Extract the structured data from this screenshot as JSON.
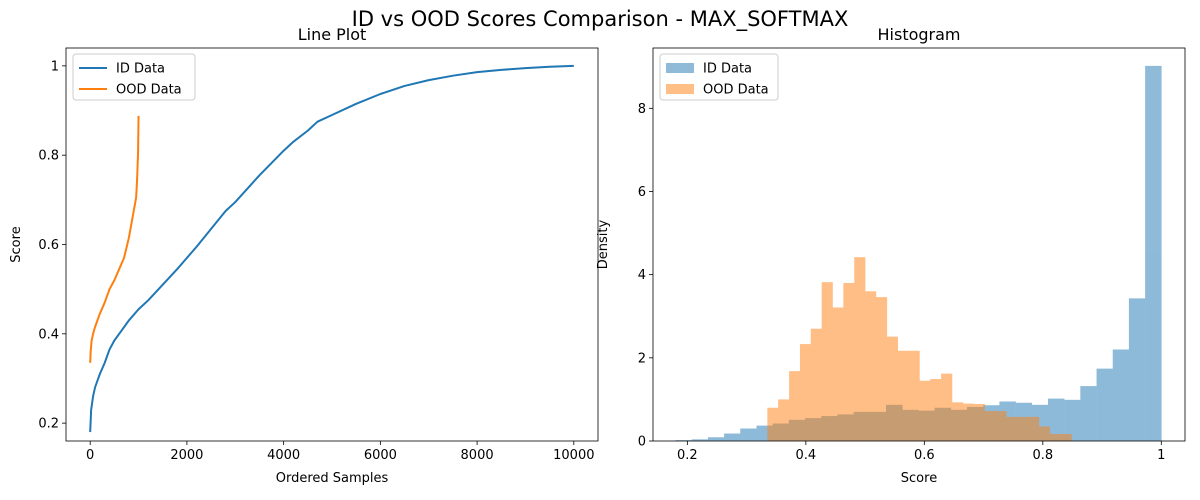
{
  "figure": {
    "title": "ID vs OOD Scores Comparison - MAX_SOFTMAX"
  },
  "chart_data": [
    {
      "type": "line",
      "title": "Line Plot",
      "xlabel": "Ordered Samples",
      "ylabel": "Score",
      "xlim": [
        -500,
        10500
      ],
      "ylim": [
        0.16,
        1.04
      ],
      "xticks": [
        0,
        2000,
        4000,
        6000,
        8000,
        10000
      ],
      "yticks": [
        0.2,
        0.4,
        0.6,
        0.8,
        1.0
      ],
      "legend": "top-left",
      "series": [
        {
          "name": "ID Data",
          "color": "#1f77b4",
          "x": [
            0,
            20,
            60,
            100,
            150,
            200,
            300,
            400,
            500,
            600,
            800,
            1000,
            1200,
            1500,
            1800,
            2000,
            2200,
            2500,
            2800,
            3000,
            3500,
            4000,
            4200,
            4500,
            4700,
            5000,
            5500,
            6000,
            6500,
            7000,
            7500,
            8000,
            8500,
            9000,
            9500,
            10000
          ],
          "y": [
            0.18,
            0.23,
            0.26,
            0.28,
            0.295,
            0.31,
            0.335,
            0.365,
            0.385,
            0.4,
            0.43,
            0.455,
            0.475,
            0.51,
            0.545,
            0.57,
            0.595,
            0.635,
            0.675,
            0.695,
            0.755,
            0.81,
            0.83,
            0.855,
            0.875,
            0.89,
            0.915,
            0.937,
            0.955,
            0.968,
            0.978,
            0.986,
            0.991,
            0.995,
            0.998,
            1.0
          ]
        },
        {
          "name": "OOD Data",
          "color": "#ff7f0e",
          "x": [
            0,
            10,
            30,
            60,
            100,
            200,
            300,
            400,
            500,
            600,
            700,
            800,
            850,
            900,
            950,
            970,
            990,
            1000
          ],
          "y": [
            0.335,
            0.36,
            0.385,
            0.4,
            0.415,
            0.445,
            0.47,
            0.5,
            0.52,
            0.545,
            0.57,
            0.615,
            0.645,
            0.675,
            0.705,
            0.745,
            0.805,
            0.888
          ]
        }
      ]
    },
    {
      "type": "histogram",
      "title": "Histogram",
      "xlabel": "Score",
      "ylabel": "Density",
      "xlim": [
        0.142,
        1.04
      ],
      "ylim": [
        0,
        9.45
      ],
      "xticks": [
        0.2,
        0.4,
        0.6,
        0.8,
        1.0
      ],
      "yticks": [
        0,
        2,
        4,
        6,
        8
      ],
      "legend": "top-left",
      "series": [
        {
          "name": "ID Data",
          "color": "#1f77b4",
          "opacity": 0.5,
          "bin_edges": [
            0.18,
            0.2073,
            0.2347,
            0.262,
            0.2893,
            0.3167,
            0.344,
            0.3713,
            0.3987,
            0.426,
            0.4533,
            0.4807,
            0.508,
            0.5353,
            0.5627,
            0.59,
            0.6173,
            0.6447,
            0.672,
            0.6993,
            0.7267,
            0.754,
            0.7813,
            0.8087,
            0.836,
            0.8633,
            0.8907,
            0.918,
            0.9453,
            0.9727,
            1.0
          ],
          "values": [
            0.02,
            0.04,
            0.09,
            0.18,
            0.3,
            0.37,
            0.42,
            0.51,
            0.55,
            0.6,
            0.64,
            0.7,
            0.7,
            0.87,
            0.75,
            0.73,
            0.8,
            0.75,
            0.82,
            0.86,
            0.95,
            0.92,
            0.87,
            1.02,
            0.99,
            1.32,
            1.74,
            2.2,
            3.43,
            9.02
          ]
        },
        {
          "name": "OOD Data",
          "color": "#ff7f0e",
          "opacity": 0.5,
          "bin_edges": [
            0.335,
            0.3533,
            0.3717,
            0.39,
            0.4083,
            0.4267,
            0.445,
            0.4633,
            0.4817,
            0.5,
            0.5183,
            0.5367,
            0.555,
            0.5733,
            0.5917,
            0.61,
            0.6283,
            0.6467,
            0.665,
            0.6833,
            0.7017,
            0.72,
            0.7383,
            0.7567,
            0.775,
            0.7933,
            0.8117,
            0.83,
            0.8483,
            0.8667,
            0.885
          ],
          "values": [
            0.8,
            1.0,
            1.68,
            2.33,
            2.7,
            3.82,
            3.21,
            3.8,
            4.42,
            3.6,
            3.46,
            2.51,
            2.17,
            2.17,
            1.45,
            1.49,
            1.62,
            0.93,
            0.9,
            0.89,
            0.72,
            0.72,
            0.58,
            0.58,
            0.58,
            0.35,
            0.17,
            0.17,
            0.0,
            0.0
          ]
        }
      ]
    }
  ]
}
